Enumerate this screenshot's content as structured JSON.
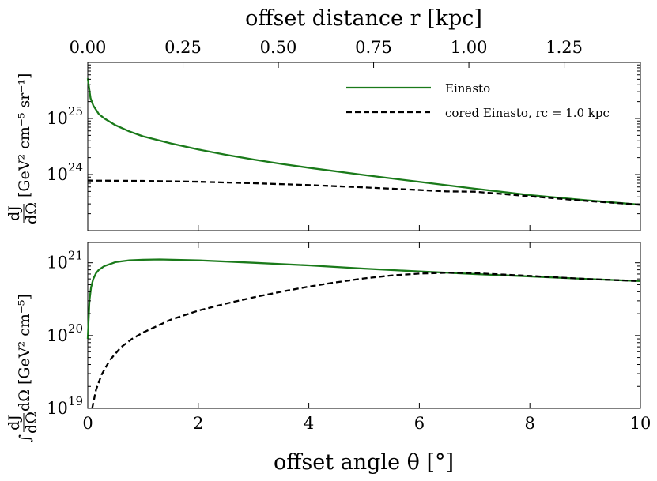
{
  "chart_data": [
    {
      "type": "line",
      "panel": "top",
      "ylabel": "dJ/dΩ  [GeV² cm⁻⁵ sr⁻¹]",
      "ylabel_frac_num": "dJ",
      "ylabel_frac_den": "dΩ",
      "ylabel_units": "[GeV² cm⁻⁵ sr⁻¹]",
      "yscale": "log",
      "ylim": [
        1e+23,
        1e+26
      ],
      "xlim": [
        0,
        10
      ],
      "top_axis": {
        "label": "offset distance r  [kpc]",
        "ticks": [
          0.0,
          0.25,
          0.5,
          0.75,
          1.0,
          1.25
        ],
        "tick_labels": [
          "0.00",
          "0.25",
          "0.50",
          "0.75",
          "1.00",
          "1.25"
        ],
        "r_max_kpc": 1.45
      },
      "ytick_labels": [
        {
          "value": 1e+24,
          "base": "10",
          "exp": "24"
        },
        {
          "value": 1e+25,
          "base": "10",
          "exp": "25"
        }
      ],
      "legend": {
        "placement": "top-right",
        "entries": [
          "Einasto",
          "cored Einasto, rc = 1.0 kpc"
        ]
      },
      "series": [
        {
          "name": "Einasto",
          "color": "#1a7a1a",
          "dash": "solid",
          "x": [
            0,
            0.05,
            0.1,
            0.2,
            0.3,
            0.5,
            0.75,
            1.0,
            1.5,
            2,
            2.5,
            3,
            3.5,
            4,
            5,
            6,
            7,
            8,
            9,
            10
          ],
          "y": [
            5.2e+25,
            2.3e+25,
            1.7e+25,
            1.2e+25,
            1e+25,
            7.6e+24,
            5.9e+24,
            4.8e+24,
            3.6e+24,
            2.8e+24,
            2.25e+24,
            1.85e+24,
            1.55e+24,
            1.32e+24,
            9.8e+23,
            7.4e+23,
            5.6e+23,
            4.3e+23,
            3.5e+23,
            2.9e+23
          ]
        },
        {
          "name": "cored Einasto, rc = 1.0 kpc",
          "color": "#000000",
          "dash": "dashed",
          "x": [
            0,
            1,
            2,
            3,
            4,
            5,
            6,
            6.5,
            7,
            8,
            9,
            10
          ],
          "y": [
            7.8e+23,
            7.7e+23,
            7.45e+23,
            7e+23,
            6.5e+23,
            5.9e+23,
            5.3e+23,
            5e+23,
            4.95e+23,
            4.1e+23,
            3.4e+23,
            2.9e+23
          ]
        }
      ]
    },
    {
      "type": "line",
      "panel": "bottom",
      "ylabel": "∫ dJ/dΩ dΩ  [GeV² cm⁻⁵]",
      "ylabel_frac_num": "dJ",
      "ylabel_frac_den": "dΩ",
      "ylabel_integral": "∫",
      "ylabel_domega": "dΩ",
      "ylabel_units": "[GeV² cm⁻⁵]",
      "yscale": "log",
      "ylim": [
        1e+19,
        1.9e+21
      ],
      "xlim": [
        0,
        10
      ],
      "xlabel": "offset angle θ  [°]",
      "xticks": [
        0,
        2,
        4,
        6,
        8,
        10
      ],
      "xtick_labels": [
        "0",
        "2",
        "4",
        "6",
        "8",
        "10"
      ],
      "ytick_labels": [
        {
          "value": 1e+19,
          "base": "10",
          "exp": "19"
        },
        {
          "value": 1e+20,
          "base": "10",
          "exp": "20"
        },
        {
          "value": 1e+21,
          "base": "10",
          "exp": "21"
        }
      ],
      "series": [
        {
          "name": "Einasto",
          "color": "#1a7a1a",
          "dash": "solid",
          "x": [
            0,
            0.03,
            0.06,
            0.1,
            0.15,
            0.2,
            0.3,
            0.5,
            0.75,
            1.0,
            1.3,
            2,
            3,
            4,
            5,
            6,
            6.5,
            7,
            8,
            9,
            10
          ],
          "y": [
            9e+19,
            3e+20,
            4.6e+20,
            6e+20,
            7.2e+20,
            8e+20,
            9e+20,
            1.02e+21,
            1.08e+21,
            1.1e+21,
            1.11e+21,
            1.08e+21,
            1e+21,
            9.2e+20,
            8.3e+20,
            7.6e+20,
            7.3e+20,
            7e+20,
            6.5e+20,
            6e+20,
            5.6e+20
          ]
        },
        {
          "name": "cored Einasto, rc = 1.0 kpc",
          "color": "#000000",
          "dash": "dashed",
          "x": [
            0.08,
            0.15,
            0.25,
            0.4,
            0.6,
            0.8,
            1.0,
            1.5,
            2,
            2.5,
            3,
            3.5,
            4,
            4.5,
            5,
            5.5,
            6,
            6.5,
            7,
            8,
            9,
            10
          ],
          "y": [
            1e+19,
            1.8e+19,
            2.9e+19,
            4.6e+19,
            6.9e+19,
            9e+19,
            1.1e+20,
            1.65e+20,
            2.2e+20,
            2.75e+20,
            3.35e+20,
            4e+20,
            4.7e+20,
            5.4e+20,
            6.1e+20,
            6.7e+20,
            7.1e+20,
            7.3e+20,
            7.2e+20,
            6.6e+20,
            6e+20,
            5.6e+20
          ]
        }
      ]
    }
  ]
}
